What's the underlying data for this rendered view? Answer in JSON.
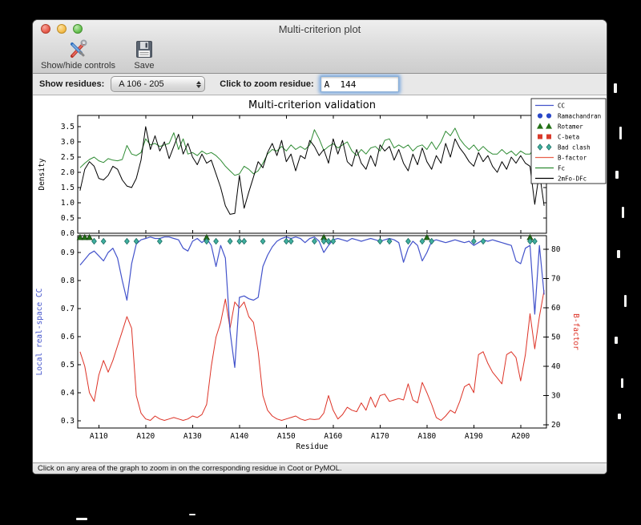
{
  "window": {
    "title": "Multi-criterion plot"
  },
  "toolbar": {
    "buttons": [
      {
        "label": "Show/hide controls",
        "icon": "tools-icon"
      },
      {
        "label": "Save",
        "icon": "save-icon"
      }
    ]
  },
  "controls": {
    "show_residues_label": "Show residues:",
    "residue_range_value": "A 106 - 205",
    "zoom_residue_label": "Click to zoom residue:",
    "zoom_residue_value": "A  144"
  },
  "status_bar": {
    "text": "Click on any area of the graph to zoom in on the corresponding residue in Coot or PyMOL."
  },
  "chart_data": {
    "type": "line",
    "title": "Multi-criterion validation",
    "x": {
      "label": "Residue",
      "xlim": [
        105.5,
        205.5
      ],
      "start_residue": 106,
      "tick_residues": [
        110,
        120,
        130,
        140,
        150,
        160,
        170,
        180,
        190,
        200
      ],
      "tick_labels": [
        "A110",
        "A120",
        "A130",
        "A140",
        "A150",
        "A160",
        "A170",
        "A180",
        "A190",
        "A200"
      ]
    },
    "legend": {
      "position": "upper right",
      "entries": [
        {
          "label": "CC",
          "symbol": "line",
          "color": "#4353cb"
        },
        {
          "label": "Ramachandran",
          "symbol": "circle",
          "color": "#2a48c8"
        },
        {
          "label": "Rotamer",
          "symbol": "triangle",
          "color": "#237016"
        },
        {
          "label": "C-beta",
          "symbol": "square",
          "color": "#d93a2b"
        },
        {
          "label": "Bad clash",
          "symbol": "diamond",
          "color": "#40b0a0"
        },
        {
          "label": "B-factor",
          "symbol": "line",
          "color": "#e8604c"
        },
        {
          "label": "Fc",
          "symbol": "line",
          "color": "#2e8b33"
        },
        {
          "label": "2mFo-DFc",
          "symbol": "line",
          "color": "#000000"
        }
      ]
    },
    "panels": [
      {
        "name": "density",
        "ylabel": "Density",
        "ylabel_color": "#000000",
        "ylim": [
          0.0,
          3.868
        ],
        "ytick_values": [
          0.0,
          0.5,
          1.0,
          1.5,
          2.0,
          2.5,
          3.0,
          3.5
        ],
        "ytick_labels": [
          "0.0",
          "0.5",
          "1.0",
          "1.5",
          "2.0",
          "2.5",
          "3.0",
          "3.5"
        ],
        "grid": false,
        "series": [
          {
            "name": "Fc",
            "color": "#2e8b33",
            "values": [
              2.15,
              2.3,
              2.42,
              2.5,
              2.38,
              2.32,
              2.45,
              2.4,
              2.38,
              2.42,
              2.88,
              2.6,
              2.55,
              2.65,
              3.1,
              2.9,
              2.95,
              2.85,
              2.9,
              2.95,
              3.3,
              2.75,
              3.1,
              2.6,
              2.65,
              2.55,
              2.7,
              2.6,
              2.65,
              2.55,
              2.4,
              2.2,
              2.05,
              1.9,
              1.95,
              2.2,
              2.1,
              1.95,
              2.05,
              2.3,
              2.6,
              2.75,
              2.7,
              2.85,
              2.7,
              2.9,
              2.75,
              2.85,
              2.75,
              2.9,
              3.4,
              3.1,
              2.72,
              2.85,
              2.94,
              2.8,
              2.9,
              3.0,
              2.7,
              2.55,
              2.75,
              2.6,
              2.8,
              2.85,
              2.7,
              3.05,
              3.1,
              2.8,
              2.9,
              2.8,
              2.9,
              2.7,
              2.85,
              2.9,
              2.75,
              3.0,
              2.75,
              3.0,
              3.35,
              3.2,
              3.45,
              3.1,
              2.9,
              2.75,
              2.9,
              2.7,
              2.85,
              2.7,
              2.6,
              2.6,
              2.75,
              2.6,
              2.7,
              2.55,
              2.7,
              2.6,
              2.6,
              2.8,
              2.65,
              2.75
            ]
          },
          {
            "name": "2mFo-DFc",
            "color": "#000000",
            "values": [
              1.4,
              2.1,
              2.35,
              2.2,
              1.8,
              1.75,
              1.9,
              2.2,
              2.1,
              1.75,
              1.55,
              1.5,
              1.8,
              2.4,
              3.5,
              2.75,
              3.2,
              2.7,
              3.0,
              2.45,
              2.85,
              3.25,
              2.6,
              2.95,
              2.5,
              2.25,
              2.6,
              2.3,
              2.4,
              1.95,
              1.5,
              0.9,
              0.62,
              0.65,
              1.9,
              0.82,
              1.35,
              1.85,
              2.35,
              2.15,
              2.65,
              2.95,
              2.55,
              3.05,
              2.35,
              2.6,
              2.05,
              2.55,
              2.45,
              3.05,
              2.85,
              2.55,
              2.75,
              2.3,
              3.1,
              2.6,
              3.05,
              2.35,
              2.2,
              2.75,
              2.3,
              2.1,
              2.55,
              2.2,
              2.9,
              2.7,
              2.85,
              2.4,
              2.75,
              2.3,
              2.05,
              2.6,
              2.25,
              2.8,
              2.35,
              2.1,
              2.55,
              2.3,
              2.95,
              2.5,
              3.1,
              2.8,
              2.6,
              2.35,
              2.2,
              2.65,
              2.35,
              2.55,
              2.2,
              2.0,
              2.35,
              2.1,
              2.5,
              2.3,
              2.55,
              2.3,
              2.2,
              0.95,
              2.0,
              0.9
            ]
          }
        ]
      },
      {
        "name": "cc-bfactor",
        "ylabel_left": "Local real-space CC",
        "ylabel_left_color": "#4353cb",
        "ylim_left": [
          0.274,
          0.96
        ],
        "ytick_values_left": [
          0.3,
          0.4,
          0.5,
          0.6,
          0.7,
          0.8,
          0.9
        ],
        "ytick_labels_left": [
          "0.3",
          "0.4",
          "0.5",
          "0.6",
          "0.7",
          "0.8",
          "0.9"
        ],
        "ylabel_right": "B-factor",
        "ylabel_right_color": "#dd3226",
        "ylim_right": [
          18.9,
          84.7
        ],
        "ytick_values_right": [
          20,
          30,
          40,
          50,
          60,
          70,
          80
        ],
        "ytick_labels_right": [
          "20",
          "30",
          "40",
          "50",
          "60",
          "70",
          "80"
        ],
        "grid": false,
        "series": [
          {
            "name": "B-factor",
            "axis": "right",
            "color": "#dd3226",
            "values": [
              45,
              40,
              31,
              28,
              37,
              42,
              38,
              42,
              47,
              52,
              57,
              53,
              30,
              24,
              22,
              21.5,
              23,
              22,
              21.5,
              22,
              22.5,
              22,
              21.5,
              22,
              23,
              22.5,
              23.5,
              27,
              40,
              50,
              55,
              63,
              53,
              62,
              60,
              62,
              57,
              55,
              45,
              30,
              25,
              23,
              22,
              21.5,
              22,
              22.5,
              23,
              22,
              21.5,
              22,
              21.8,
              22,
              24,
              30,
              25,
              22,
              23.5,
              26,
              25,
              24.5,
              27.5,
              25,
              29.5,
              26,
              30,
              30.5,
              28,
              28.5,
              29,
              28.5,
              34,
              28.5,
              27.5,
              34.5,
              31,
              27,
              22.5,
              21.5,
              23,
              25,
              24,
              28,
              33,
              34,
              31,
              44,
              45,
              41,
              38,
              36,
              34,
              44,
              45,
              43,
              35,
              44,
              58,
              46,
              57,
              66
            ]
          },
          {
            "name": "CC",
            "axis": "left",
            "color": "#4353cb",
            "values": [
              0.855,
              0.875,
              0.895,
              0.905,
              0.888,
              0.87,
              0.9,
              0.915,
              0.88,
              0.8,
              0.73,
              0.86,
              0.93,
              0.945,
              0.95,
              0.955,
              0.95,
              0.95,
              0.955,
              0.955,
              0.95,
              0.945,
              0.915,
              0.905,
              0.94,
              0.95,
              0.935,
              0.95,
              0.925,
              0.85,
              0.925,
              0.88,
              0.62,
              0.49,
              0.74,
              0.745,
              0.735,
              0.73,
              0.74,
              0.85,
              0.89,
              0.92,
              0.94,
              0.95,
              0.955,
              0.95,
              0.955,
              0.95,
              0.935,
              0.95,
              0.955,
              0.94,
              0.9,
              0.925,
              0.945,
              0.95,
              0.945,
              0.94,
              0.95,
              0.945,
              0.94,
              0.945,
              0.95,
              0.945,
              0.94,
              0.945,
              0.95,
              0.945,
              0.935,
              0.865,
              0.915,
              0.94,
              0.925,
              0.87,
              0.9,
              0.94,
              0.945,
              0.94,
              0.935,
              0.94,
              0.945,
              0.94,
              0.935,
              0.94,
              0.925,
              0.935,
              0.945,
              0.94,
              0.945,
              0.94,
              0.935,
              0.93,
              0.925,
              0.87,
              0.86,
              0.915,
              0.925,
              0.68,
              0.925,
              0.75
            ]
          }
        ],
        "outlier_markers": [
          {
            "name": "Rotamer",
            "symbol": "triangle",
            "fill": "#237016",
            "edge": "#123c0a",
            "residues": [
              106,
              107,
              108,
              133,
              158,
              180,
              202
            ]
          },
          {
            "name": "Bad clash",
            "symbol": "diamond",
            "fill": "#40b0a0",
            "edge": "#1e6e63",
            "residues": [
              109,
              111,
              116,
              118,
              123,
              133,
              135,
              138,
              140,
              141,
              145,
              150,
              151,
              156,
              158,
              159,
              160,
              170,
              172,
              176,
              179,
              181,
              190,
              192,
              202,
              203
            ]
          }
        ]
      }
    ]
  }
}
